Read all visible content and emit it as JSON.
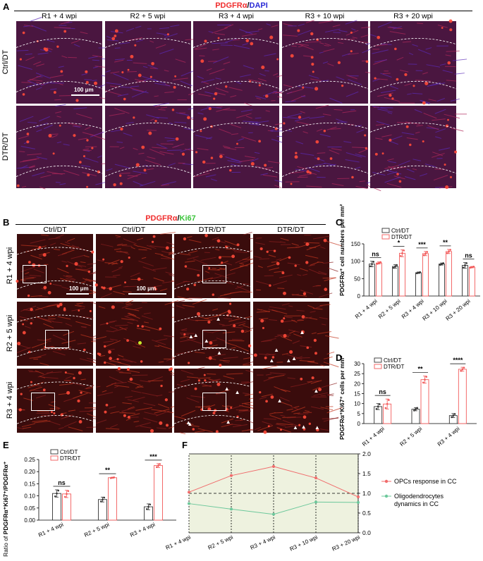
{
  "panelA": {
    "label": "A",
    "title_parts": [
      "PDGFRα",
      "/",
      "DAPI"
    ],
    "columns": [
      "R1 + 4 wpi",
      "R2 + 5 wpi",
      "R3 + 4 wpi",
      "R3 + 10 wpi",
      "R3 + 20 wpi"
    ],
    "rows": [
      "Ctrl/DT",
      "DTR/DT"
    ],
    "scale_bar": "100 μm"
  },
  "panelB": {
    "label": "B",
    "title_parts": [
      "PDGFRα",
      "/",
      "Ki67"
    ],
    "columns": [
      "Ctrl/DT",
      "Ctrl/DT",
      "DTR/DT",
      "DTR/DT"
    ],
    "rows": [
      "R1 + 4 wpi",
      "R2 + 5 wpi",
      "R3 + 4 wpi"
    ],
    "scale_bar_1": "100 μm",
    "scale_bar_2": "100 μm"
  },
  "chart_data": [
    {
      "panel": "C",
      "type": "bar",
      "ylabel": "PDGFRα⁺ cell numbers per mm²",
      "categories": [
        "R1 + 4 wpi",
        "R2 + 5 wpi",
        "R3 + 4 wpi",
        "R3 + 10 wpi",
        "R3 + 20 wpi"
      ],
      "series": [
        {
          "name": "Ctrl/DT",
          "values": [
            92,
            85,
            67,
            92,
            88
          ],
          "errors": [
            8,
            5,
            2,
            3,
            8
          ],
          "color": "#333333"
        },
        {
          "name": "DTR/DT",
          "values": [
            95,
            123,
            122,
            128,
            83
          ],
          "errors": [
            3,
            10,
            6,
            6,
            2
          ],
          "color": "#f25a5a"
        }
      ],
      "significance": [
        "ns",
        "*",
        "***",
        "**",
        "ns"
      ],
      "ylim": [
        0,
        150
      ],
      "yticks": [
        0,
        50,
        100,
        150
      ],
      "legend": "top-right"
    },
    {
      "panel": "D",
      "type": "bar",
      "ylabel": "PDGFRα⁺Ki67⁺ cells per mm²",
      "categories": [
        "R1 + 4 wpi",
        "R2 + 5 wpi",
        "R3 + 4 wpi"
      ],
      "series": [
        {
          "name": "Ctrl/DT",
          "values": [
            8.5,
            7.2,
            4.0
          ],
          "errors": [
            1.5,
            0.8,
            1.0
          ],
          "color": "#333333"
        },
        {
          "name": "DTR/DT",
          "values": [
            9.8,
            22.0,
            27.2
          ],
          "errors": [
            2.5,
            1.8,
            1.0
          ],
          "color": "#f25a5a"
        }
      ],
      "significance": [
        "ns",
        "**",
        "****"
      ],
      "ylim": [
        0,
        30
      ],
      "yticks": [
        0,
        5,
        10,
        15,
        20,
        25,
        30
      ],
      "legend": "top-left"
    },
    {
      "panel": "E",
      "type": "bar",
      "ylabel_prefix": "Ratio of ",
      "ylabel_bold": "PDGFRα⁺Ki67⁺/PDGFRα⁺",
      "categories": [
        "R1 + 4 wpi",
        "R2 + 5 wpi",
        "R3 + 4 wpi"
      ],
      "series": [
        {
          "name": "Ctrl/DT",
          "values": [
            0.11,
            0.085,
            0.055
          ],
          "errors": [
            0.015,
            0.01,
            0.012
          ],
          "color": "#333333"
        },
        {
          "name": "DTR/DT",
          "values": [
            0.108,
            0.175,
            0.225
          ],
          "errors": [
            0.015,
            0.002,
            0.008
          ],
          "color": "#f25a5a"
        }
      ],
      "significance": [
        "ns",
        "**",
        "***"
      ],
      "ylim": [
        0,
        0.25
      ],
      "yticks": [
        0.0,
        0.05,
        0.1,
        0.15,
        0.2,
        0.25
      ],
      "legend": "top-left"
    },
    {
      "panel": "F",
      "type": "line",
      "x": [
        "R1 + 4 wpi",
        "R2 + 5 wpi",
        "R3 + 4 wpi",
        "R3 + 10 wpi",
        "R3 + 20 wpi"
      ],
      "series": [
        {
          "name": "OPCs response in CC",
          "values": [
            1.03,
            1.45,
            1.68,
            1.39,
            0.91
          ],
          "color": "#f06b6b"
        },
        {
          "name": "Oligodendrocytes dynamics in CC",
          "values": [
            0.74,
            0.6,
            0.47,
            0.78,
            0.77
          ],
          "color": "#6cc89b"
        }
      ],
      "ylim": [
        0,
        2.0
      ],
      "yticks": [
        "0.0",
        "0.5",
        "1.0",
        "1.5",
        "2.0"
      ],
      "reference_line": 1.0,
      "background": "#eef2df",
      "legend": "right"
    }
  ],
  "colors": {
    "red": "#f02d2d",
    "blue": "#2b2bd6",
    "green": "#3cc43c",
    "ctrl": "#333333",
    "dtr": "#f25a5a"
  }
}
